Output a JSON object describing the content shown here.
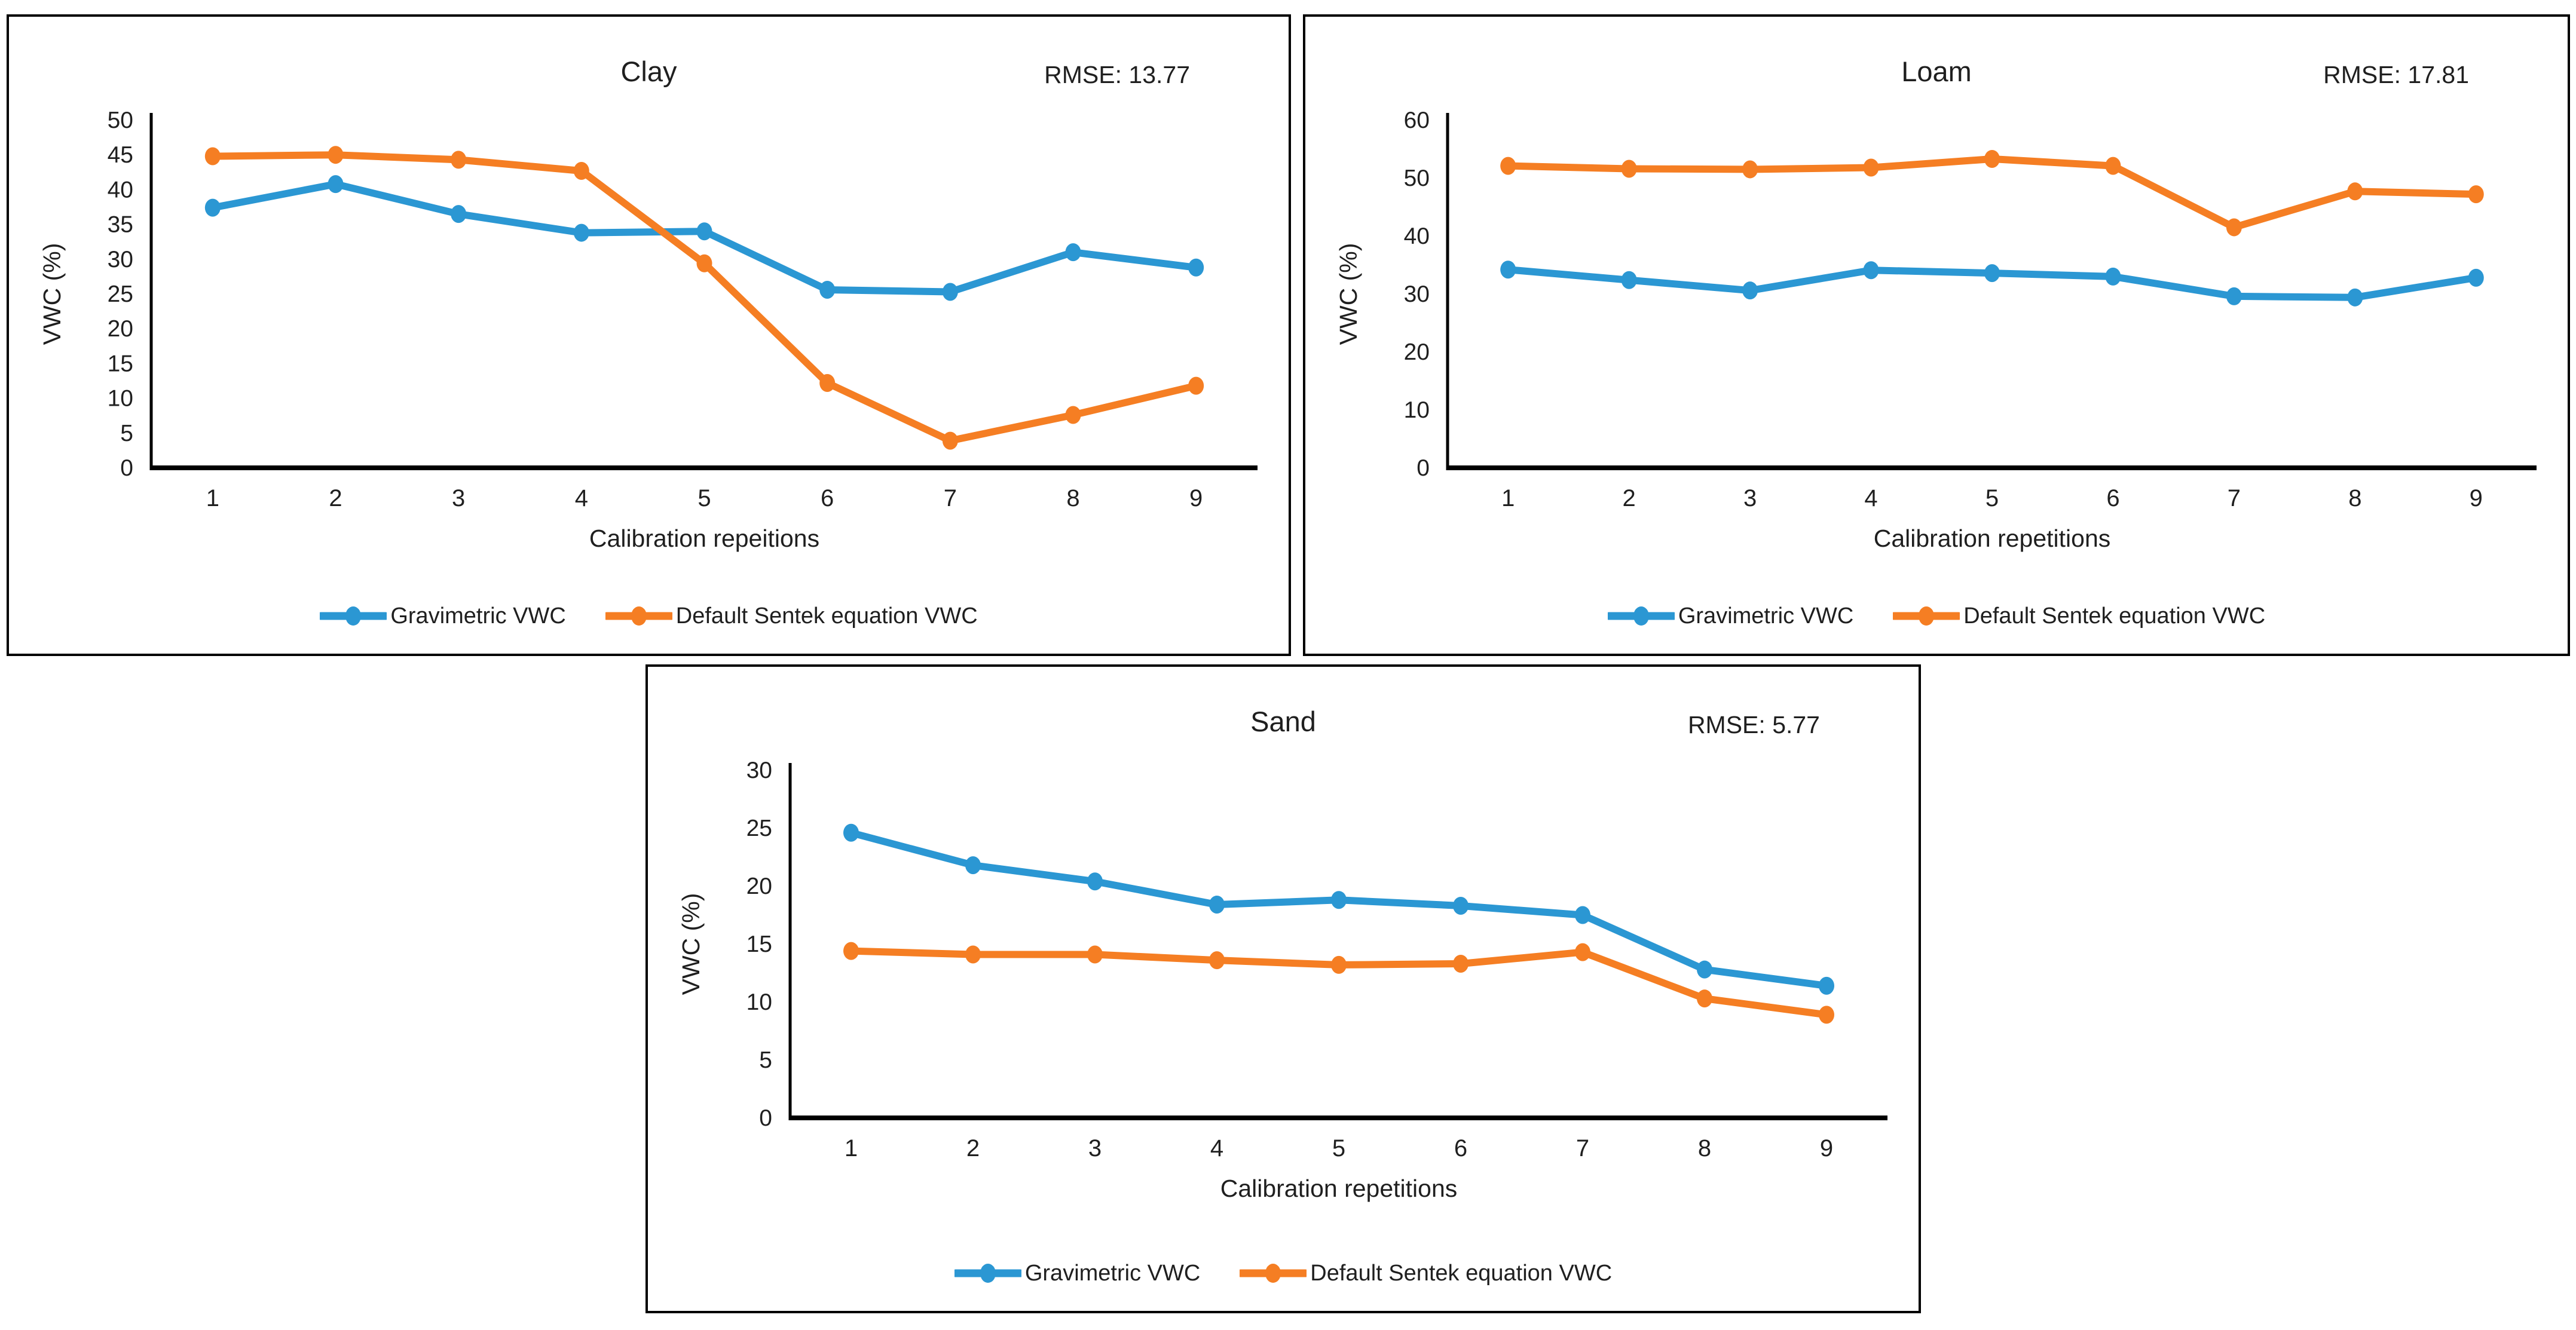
{
  "page": {
    "background": "#ffffff",
    "panel_border_color": "#000000"
  },
  "colors": {
    "gravimetric_line": "#2B97D3",
    "sentek_line": "#F57E23",
    "axis": "#000000",
    "text": "#1f1f1f"
  },
  "chart_data": [
    {
      "type": "line",
      "soil": "Clay",
      "title": "Clay",
      "rmse_label": "RMSE: 13.77",
      "xlabel": "Calibration repeitions",
      "ylabel": "VWC (%)",
      "ylim": [
        0,
        50
      ],
      "ytick_step": 5,
      "grid": false,
      "legend_position": "bottom",
      "categories": [
        "1",
        "2",
        "3",
        "4",
        "5",
        "6",
        "7",
        "8",
        "9"
      ],
      "series": [
        {
          "name": "Gravimetric VWC",
          "color": "#2B97D3",
          "values": [
            37.4,
            40.8,
            36.5,
            33.8,
            34.0,
            25.6,
            25.3,
            31.0,
            28.8
          ]
        },
        {
          "name": "Default Sentek equation VWC",
          "color": "#F57E23",
          "values": [
            44.8,
            45.0,
            44.3,
            42.7,
            29.4,
            12.2,
            3.9,
            7.6,
            11.8
          ]
        }
      ]
    },
    {
      "type": "line",
      "soil": "Loam",
      "title": "Loam",
      "rmse_label": "RMSE: 17.81",
      "xlabel": "Calibration repetitions",
      "ylabel": "VWC (%)",
      "ylim": [
        0,
        60
      ],
      "ytick_step": 10,
      "grid": false,
      "legend_position": "bottom",
      "categories": [
        "1",
        "2",
        "3",
        "4",
        "5",
        "6",
        "7",
        "8",
        "9"
      ],
      "series": [
        {
          "name": "Gravimetric VWC",
          "color": "#2B97D3",
          "values": [
            34.2,
            32.4,
            30.6,
            34.1,
            33.6,
            33.0,
            29.6,
            29.4,
            32.8
          ]
        },
        {
          "name": "Default Sentek equation VWC",
          "color": "#F57E23",
          "values": [
            52.1,
            51.6,
            51.5,
            51.8,
            53.3,
            52.1,
            41.5,
            47.7,
            47.2
          ]
        }
      ]
    },
    {
      "type": "line",
      "soil": "Sand",
      "title": "Sand",
      "rmse_label": "RMSE: 5.77",
      "xlabel": "Calibration repetitions",
      "ylabel": "VWC (%)",
      "ylim": [
        0,
        30
      ],
      "ytick_step": 5,
      "grid": false,
      "legend_position": "bottom",
      "categories": [
        "1",
        "2",
        "3",
        "4",
        "5",
        "6",
        "7",
        "8",
        "9"
      ],
      "series": [
        {
          "name": "Gravimetric VWC",
          "color": "#2B97D3",
          "values": [
            24.6,
            21.8,
            20.4,
            18.4,
            18.8,
            18.3,
            17.5,
            12.8,
            11.4
          ]
        },
        {
          "name": "Default Sentek equation VWC",
          "color": "#F57E23",
          "values": [
            14.4,
            14.1,
            14.1,
            13.6,
            13.2,
            13.3,
            14.3,
            10.3,
            8.9
          ]
        }
      ]
    }
  ]
}
